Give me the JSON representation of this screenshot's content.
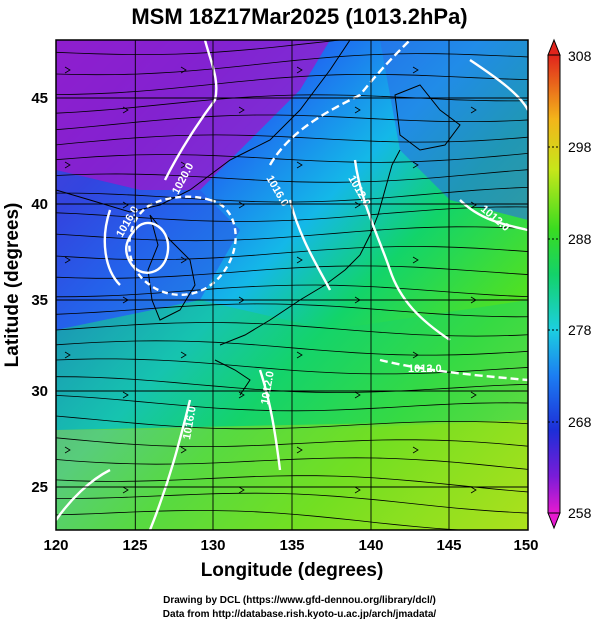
{
  "title": "MSM 18Z17Mar2025 (1013.2hPa)",
  "axes": {
    "xlabel": "Longitude (degrees)",
    "ylabel": "Latitude  (degrees)",
    "xticks": [
      "120",
      "125",
      "130",
      "135",
      "140",
      "145",
      "150"
    ],
    "yticks": [
      "25",
      "30",
      "35",
      "40",
      "45"
    ]
  },
  "colorbar": {
    "ticks": [
      "308",
      "298",
      "288",
      "278",
      "268",
      "258"
    ],
    "range": [
      258,
      308
    ]
  },
  "contour_labels": [
    "1020.0",
    "1016.0",
    "1012.0",
    "1016.0",
    "1012.0",
    "1012.0",
    "1016.0",
    "1012.0"
  ],
  "credits": {
    "line1": "Drawing by DCL (https://www.gfd-dennou.org/library/dcl/)",
    "line2": "Data from http://database.rish.kyoto-u.ac.jp/arch/jmadata/"
  },
  "colors": {
    "contour": "#ffffff",
    "streamline": "#000000",
    "cold": "#9b1fd6",
    "warm": "#d2e21a"
  }
}
